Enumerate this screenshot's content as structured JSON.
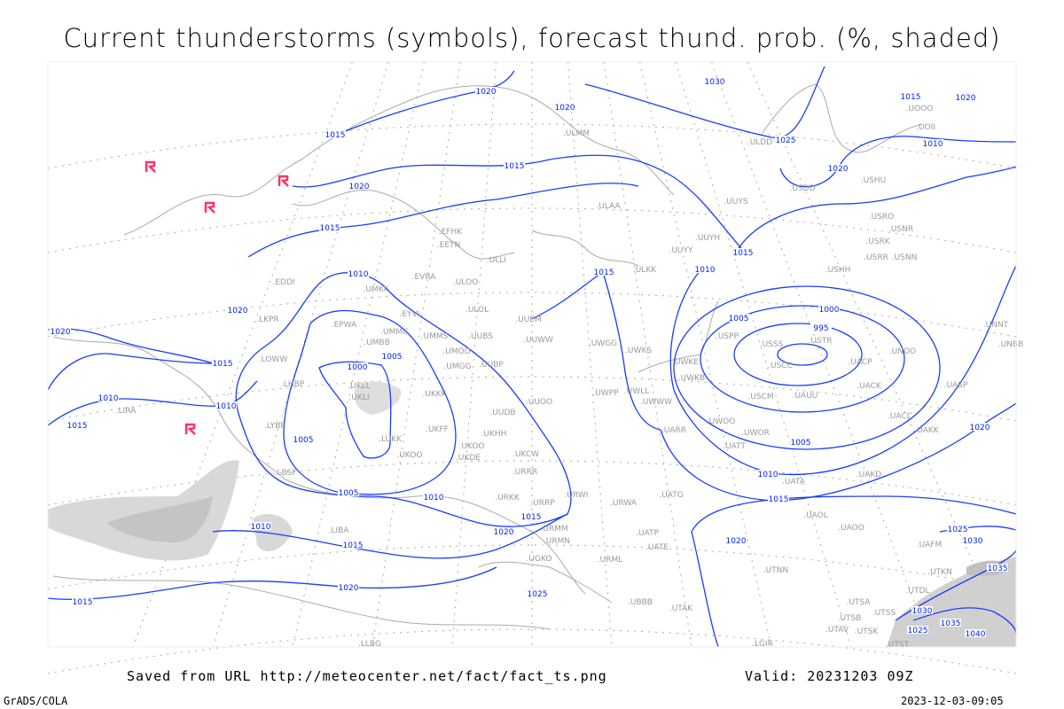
{
  "title": "Current thunderstorms (symbols), forecast thund. prob. (%, shaded)",
  "footer": {
    "saved_from": "Saved from URL http://meteocenter.net/fact/fact_ts.png",
    "valid": "Valid: 20231203 09Z",
    "software": "GrADS/COLA",
    "timestamp": "2023-12-03-09:05"
  },
  "colors": {
    "isobar": "#1a3cff",
    "station": "#999999",
    "thunderstorm_symbol": "#ff3366",
    "probability_shading": "#d0d0d0",
    "coastline": "#aaaaaa"
  },
  "legend_icons": {
    "thunderstorm": "thunderstorm-symbol-icon"
  },
  "isobar_labels": [
    "1020",
    "1020",
    "1030",
    "1015",
    "1025",
    "1015",
    "1020",
    "1010",
    "1015",
    "1020",
    "1020",
    "1015",
    "1015",
    "1010",
    "1015",
    "1010",
    "1020",
    "1020",
    "1005",
    "1000",
    "995",
    "1015",
    "1005",
    "1000",
    "1010",
    "1010",
    "1015",
    "1005",
    "1005",
    "1020",
    "1010",
    "1005",
    "1010",
    "1015",
    "1015",
    "1020",
    "1010",
    "1015",
    "1020",
    "1025",
    "1030",
    "1035",
    "1025",
    "1020",
    "1015",
    "1030",
    "1025",
    "1035",
    "1040"
  ],
  "stations": [
    "ULMM",
    "ULAA",
    "UUYS",
    "UUYH",
    "ULLI",
    "ULKK",
    "UUYY",
    "EFHK",
    "EETN",
    "EVRA",
    "ULOO",
    "ULOL",
    "UMKK",
    "EYVI",
    "UMMG",
    "UMMS",
    "UMOO",
    "UUBS",
    "EPWA",
    "UMBB",
    "UUEM",
    "UUWW",
    "UWGG",
    "UWKS",
    "UWKE",
    "UWKB",
    "UWLL",
    "UWWW",
    "UWPP",
    "UUOO",
    "UUDB",
    "UMGG",
    "UUBP",
    "UKKK",
    "UKLL",
    "UKLI",
    "LHBP",
    "LOWW",
    "LKPR",
    "EDDI",
    "LYBE",
    "UKHH",
    "UKOO",
    "UKDE",
    "UKFF",
    "LUKK",
    "UKOO",
    "LBSF",
    "UKCW",
    "URRR",
    "URWI",
    "URKK",
    "URRP",
    "URMM",
    "URMN",
    "URWA",
    "UATG",
    "UARR",
    "UWOO",
    "UWOR",
    "UATT",
    "USCM",
    "UAUU",
    "USCC",
    "USSS",
    "USTR",
    "UACP",
    "UNOO",
    "UACK",
    "UACC",
    "UAKK",
    "UASP",
    "UAKD",
    "UATA",
    "UAOL",
    "UAOO",
    "USPP",
    "USHH",
    "USRR",
    "USNN",
    "USRK",
    "USNR",
    "USRO",
    "USHU",
    "USDD",
    "ULDD",
    "UOOO",
    "UOII",
    "UNNT",
    "UNBB",
    "UTNN",
    "URML",
    "UATE",
    "UATP",
    "UGKO",
    "UBBB",
    "UTAK",
    "UTSA",
    "UTSB",
    "UTSS",
    "UTAV",
    "UTSK",
    "UTST",
    "UTDL",
    "UTKN",
    "UAFM",
    "LIBA",
    "LIRA",
    "LGIR",
    "LLBG"
  ],
  "thunderstorm_reports": 4
}
